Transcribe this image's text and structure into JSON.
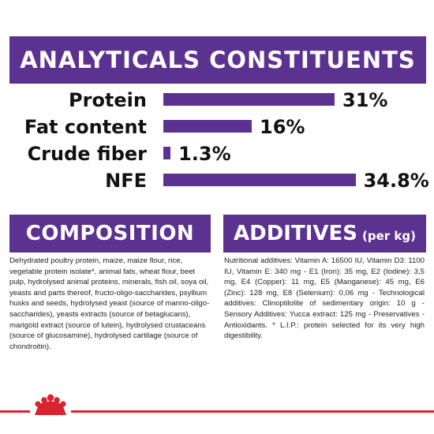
{
  "header": {
    "title": "ANALYTICALS CONSTITUENTS"
  },
  "constituents": [
    {
      "label": "Protein",
      "value": "31%",
      "percent": 31
    },
    {
      "label": "Fat content",
      "value": "16%",
      "percent": 16
    },
    {
      "label": "Crude fiber",
      "value": "1.3%",
      "percent": 1.3
    },
    {
      "label": "NFE",
      "value": "34.8%",
      "percent": 34.8
    }
  ],
  "composition": {
    "title": "COMPOSITION",
    "text": "Dehydrated poultry protein, maize, maize flour, rice, vegetable protein isolate*, animal fats, wheat flour, beet pulp, hydrolysed animal proteins, minerals, fish oil, soya oil, yeasts and parts thereof, fructo-oligo-saccharides, psyllium husks and seeds, hydrolysed yeast (source of manno-oligo-saccharides), yeasts extracts (source of betaglucans), marigold extract (source of lutein), hydrolysed crustaceans (source of glucosamine), hydrolysed cartilage (source of chondroitin)."
  },
  "additives": {
    "title": "ADDITIVES",
    "unit": "(per kg)",
    "text": "Nutritional additives: Vitamin A: 16500 IU, Vitamin D3: 1100 IU, Vitamin E: 340 mg - E1 (Iron): 35 mg, E2 (Iodine): 3,5 mg, E4 (Copper): 11 mg, E5 (Manganese): 45 mg, E6 (Zinc): 128 mg, E8 (Selenium): 0,06 mg - Technological additives: Clinoptilolite of sedimentary origin: 10 g - Sensory Additives: Yucca extract: 125 mg - Preservatives - Antioxidants. * L.I.P.: protein selected for its very high digestibility."
  },
  "colors": {
    "accent": "#5c3290",
    "brand_red": "#d9232e"
  },
  "icons": {
    "logo": "royal-canin-crown-icon"
  }
}
